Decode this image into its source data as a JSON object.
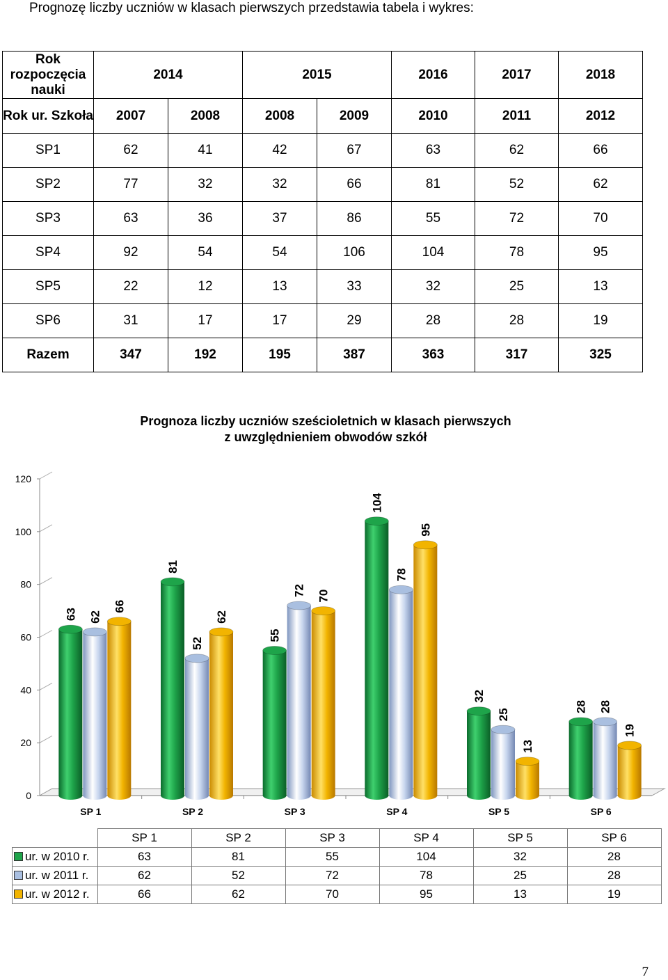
{
  "intro_text": "Prognozę liczby uczniów w klasach pierwszych przedstawia tabela i wykres:",
  "table": {
    "header1": [
      "Rok rozpoczęcia nauki",
      "2014",
      "2015",
      "2016",
      "2017",
      "2018"
    ],
    "header2": [
      "Rok ur. Szkoła",
      "2007",
      "2008",
      "2008",
      "2009",
      "2010",
      "2011",
      "2012"
    ],
    "rows": [
      [
        "SP1",
        "62",
        "41",
        "42",
        "67",
        "63",
        "62",
        "66"
      ],
      [
        "SP2",
        "77",
        "32",
        "32",
        "66",
        "81",
        "52",
        "62"
      ],
      [
        "SP3",
        "63",
        "36",
        "37",
        "86",
        "55",
        "72",
        "70"
      ],
      [
        "SP4",
        "92",
        "54",
        "54",
        "106",
        "104",
        "78",
        "95"
      ],
      [
        "SP5",
        "22",
        "12",
        "13",
        "33",
        "32",
        "25",
        "13"
      ],
      [
        "SP6",
        "31",
        "17",
        "17",
        "29",
        "28",
        "28",
        "19"
      ],
      [
        "Razem",
        "347",
        "192",
        "195",
        "387",
        "363",
        "317",
        "325"
      ]
    ]
  },
  "chart_data": {
    "type": "bar",
    "title": "Prognoza liczby uczniów sześcioletnich w klasach pierwszych z uwzględnieniem obwodów szkół",
    "title_lines": [
      "Prognoza liczby uczniów sześcioletnich w klasach pierwszych",
      "z uwzględnieniem obwodów szkół"
    ],
    "categories": [
      "SP 1",
      "SP 2",
      "SP 3",
      "SP 4",
      "SP 5",
      "SP 6"
    ],
    "series": [
      {
        "name": "ur. w 2010 r.",
        "values": [
          63,
          81,
          55,
          104,
          32,
          28
        ],
        "color": "#1ea44a"
      },
      {
        "name": "ur. w 2011 r.",
        "values": [
          62,
          52,
          72,
          78,
          25,
          28
        ],
        "color": "#a9bfe0"
      },
      {
        "name": "ur. w 2012 r.",
        "values": [
          66,
          62,
          70,
          95,
          13,
          19
        ],
        "color": "#f2b400"
      }
    ],
    "yticks": [
      "0",
      "20",
      "40",
      "60",
      "80",
      "100",
      "120"
    ],
    "ylim": [
      0,
      120
    ],
    "grid": false,
    "legend": "data-table-bottom"
  },
  "page_number": "7"
}
